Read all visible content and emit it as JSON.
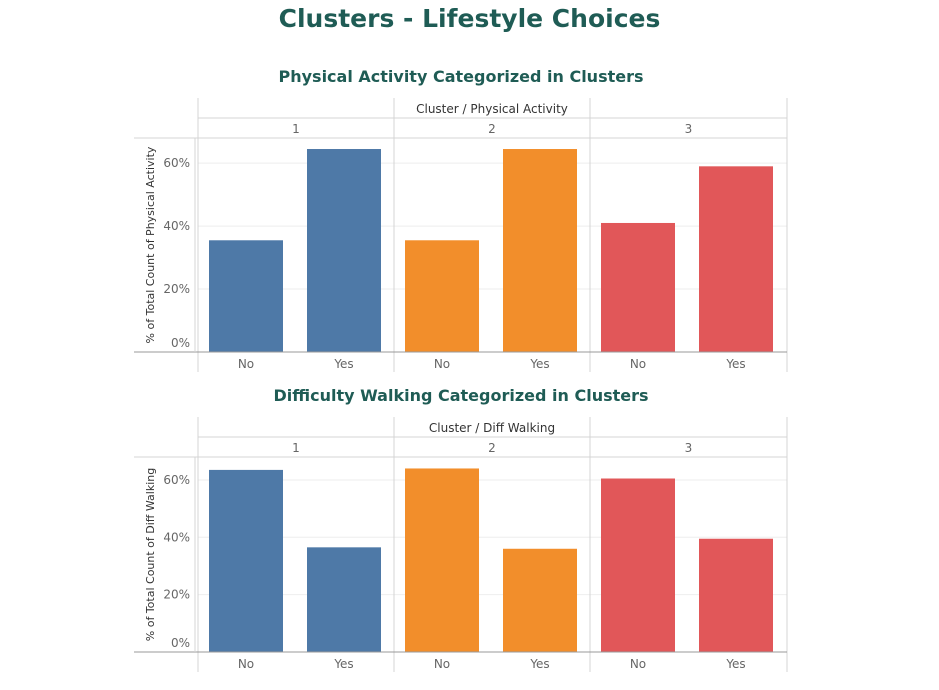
{
  "page_title": "Clusters - Lifestyle Choices",
  "chart_data": [
    {
      "type": "bar",
      "title": "Physical Activity Categorized in Clusters",
      "header": "Cluster  /  Physical Activity",
      "ylabel": "% of Total Count of Physical Activity",
      "clusters": [
        "1",
        "2",
        "3"
      ],
      "categories": [
        "No",
        "Yes"
      ],
      "colors": [
        "#4e79a7",
        "#f28e2b",
        "#e15759"
      ],
      "series": [
        {
          "cluster": "1",
          "values": [
            35.5,
            64.5
          ]
        },
        {
          "cluster": "2",
          "values": [
            35.5,
            64.5
          ]
        },
        {
          "cluster": "3",
          "values": [
            41,
            59
          ]
        }
      ],
      "yticks": [
        "0%",
        "20%",
        "40%",
        "60%"
      ],
      "ylim": [
        0,
        68
      ],
      "grid": true
    },
    {
      "type": "bar",
      "title": "Difficulty Walking Categorized in Clusters",
      "header": "Cluster  /  Diff Walking",
      "ylabel": "% of Total Count of Diff Walking",
      "clusters": [
        "1",
        "2",
        "3"
      ],
      "categories": [
        "No",
        "Yes"
      ],
      "colors": [
        "#4e79a7",
        "#f28e2b",
        "#e15759"
      ],
      "series": [
        {
          "cluster": "1",
          "values": [
            63.5,
            36.5
          ]
        },
        {
          "cluster": "2",
          "values": [
            64,
            36
          ]
        },
        {
          "cluster": "3",
          "values": [
            60.5,
            39.5
          ]
        }
      ],
      "yticks": [
        "0%",
        "20%",
        "40%",
        "60%"
      ],
      "ylim": [
        0,
        68
      ],
      "grid": true
    }
  ]
}
